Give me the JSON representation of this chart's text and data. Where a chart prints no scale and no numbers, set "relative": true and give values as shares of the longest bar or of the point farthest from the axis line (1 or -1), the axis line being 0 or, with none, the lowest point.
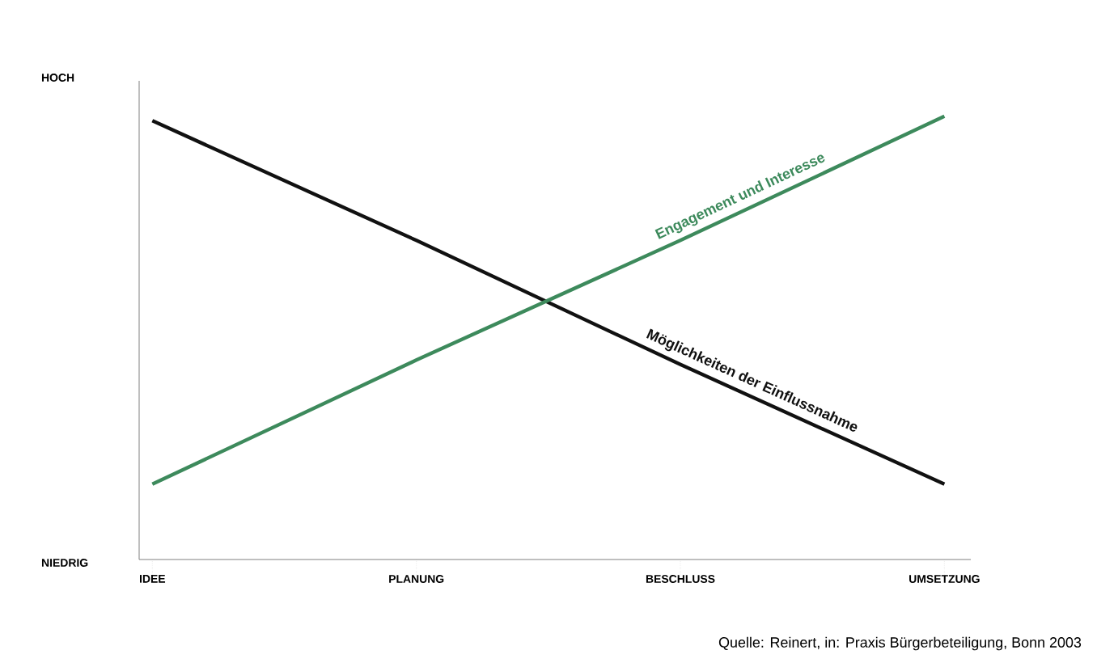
{
  "chart_data": {
    "type": "line",
    "relative": true,
    "categories": [
      "IDEE",
      "PLANUNG",
      "BESCHLUSS",
      "UMSETZUNG"
    ],
    "series": [
      {
        "name": "Möglichkeiten der Einflussnahme",
        "color": "#111111",
        "values": [
          0.99,
          0.72,
          0.44,
          0.17
        ]
      },
      {
        "name": "Engagement und Interesse",
        "color": "#3d8a5c",
        "values": [
          0.17,
          0.45,
          0.72,
          1.0
        ]
      }
    ],
    "annotations": [
      "HOCH",
      "NIEDRIG",
      "Quelle: Reinert, in: Praxis Bürgerbeteiligung, Bonn 2003"
    ]
  }
}
